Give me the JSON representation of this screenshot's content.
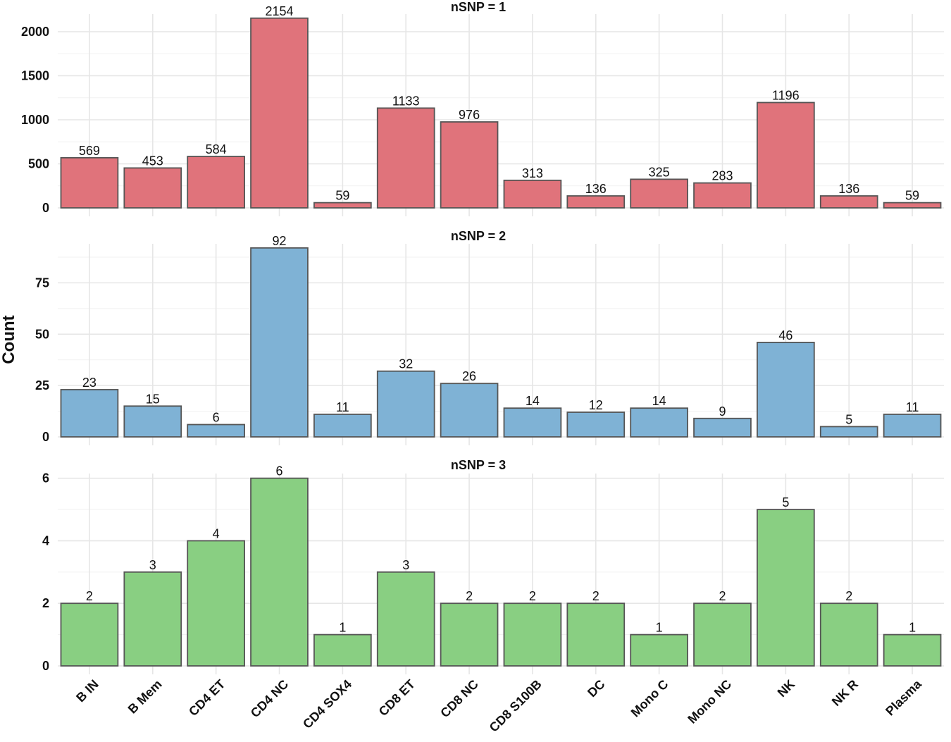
{
  "chart_data": {
    "type": "bar",
    "ylabel": "Count",
    "categories": [
      "B IN",
      "B Mem",
      "CD4 ET",
      "CD4 NC",
      "CD4 SOX4",
      "CD8 ET",
      "CD8 NC",
      "CD8 S100B",
      "DC",
      "Mono C",
      "Mono NC",
      "NK",
      "NK R",
      "Plasma"
    ],
    "grid": true,
    "panels": [
      {
        "title": "nSNP = 1",
        "color": "#e0737b",
        "ylim": [
          0,
          2200
        ],
        "yticks": [
          0,
          500,
          1000,
          1500,
          2000
        ],
        "values": [
          569,
          453,
          584,
          2154,
          59,
          1133,
          976,
          313,
          136,
          325,
          283,
          1196,
          136,
          59
        ]
      },
      {
        "title": "nSNP = 2",
        "color": "#7fb2d5",
        "ylim": [
          0,
          94
        ],
        "yticks": [
          0,
          25,
          50,
          75
        ],
        "values": [
          23,
          15,
          6,
          92,
          11,
          32,
          26,
          14,
          12,
          14,
          9,
          46,
          5,
          11
        ]
      },
      {
        "title": "nSNP = 3",
        "color": "#89cf82",
        "ylim": [
          0,
          6.15
        ],
        "yticks": [
          0,
          2,
          4,
          6
        ],
        "values": [
          2,
          3,
          4,
          6,
          1,
          3,
          2,
          2,
          2,
          1,
          2,
          5,
          2,
          1
        ]
      }
    ]
  }
}
